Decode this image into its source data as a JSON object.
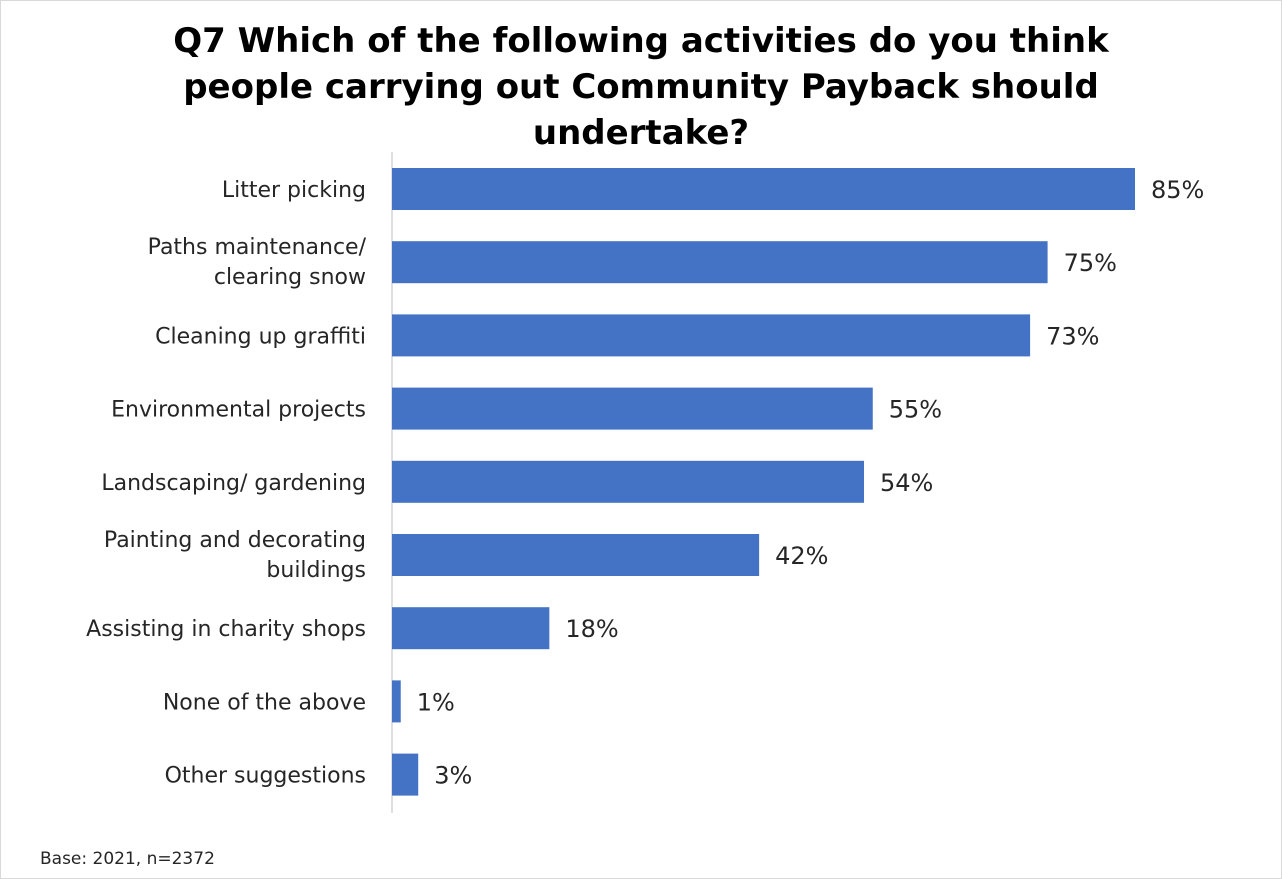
{
  "chart_data": {
    "type": "bar",
    "orientation": "horizontal",
    "title": "Q7 Which of the following activities do you think people carrying out Community Payback should undertake?",
    "categories": [
      [
        "Litter picking"
      ],
      [
        "Paths maintenance/",
        "clearing snow"
      ],
      [
        "Cleaning up graffiti"
      ],
      [
        "Environmental projects"
      ],
      [
        "Landscaping/ gardening"
      ],
      [
        "Painting and decorating",
        "buildings"
      ],
      [
        "Assisting in charity shops"
      ],
      [
        "None of the above"
      ],
      [
        "Other suggestions"
      ]
    ],
    "values": [
      85,
      75,
      73,
      55,
      54,
      42,
      18,
      1,
      3
    ],
    "value_labels": [
      "85%",
      "75%",
      "73%",
      "55%",
      "54%",
      "42%",
      "18%",
      "1%",
      "3%"
    ],
    "xlim": [
      0,
      85
    ],
    "bar_color": "#4472c4",
    "axis_color": "#bfbfbf",
    "grid": false,
    "legend": "none"
  },
  "footnote": "Base: 2021, n=2372"
}
